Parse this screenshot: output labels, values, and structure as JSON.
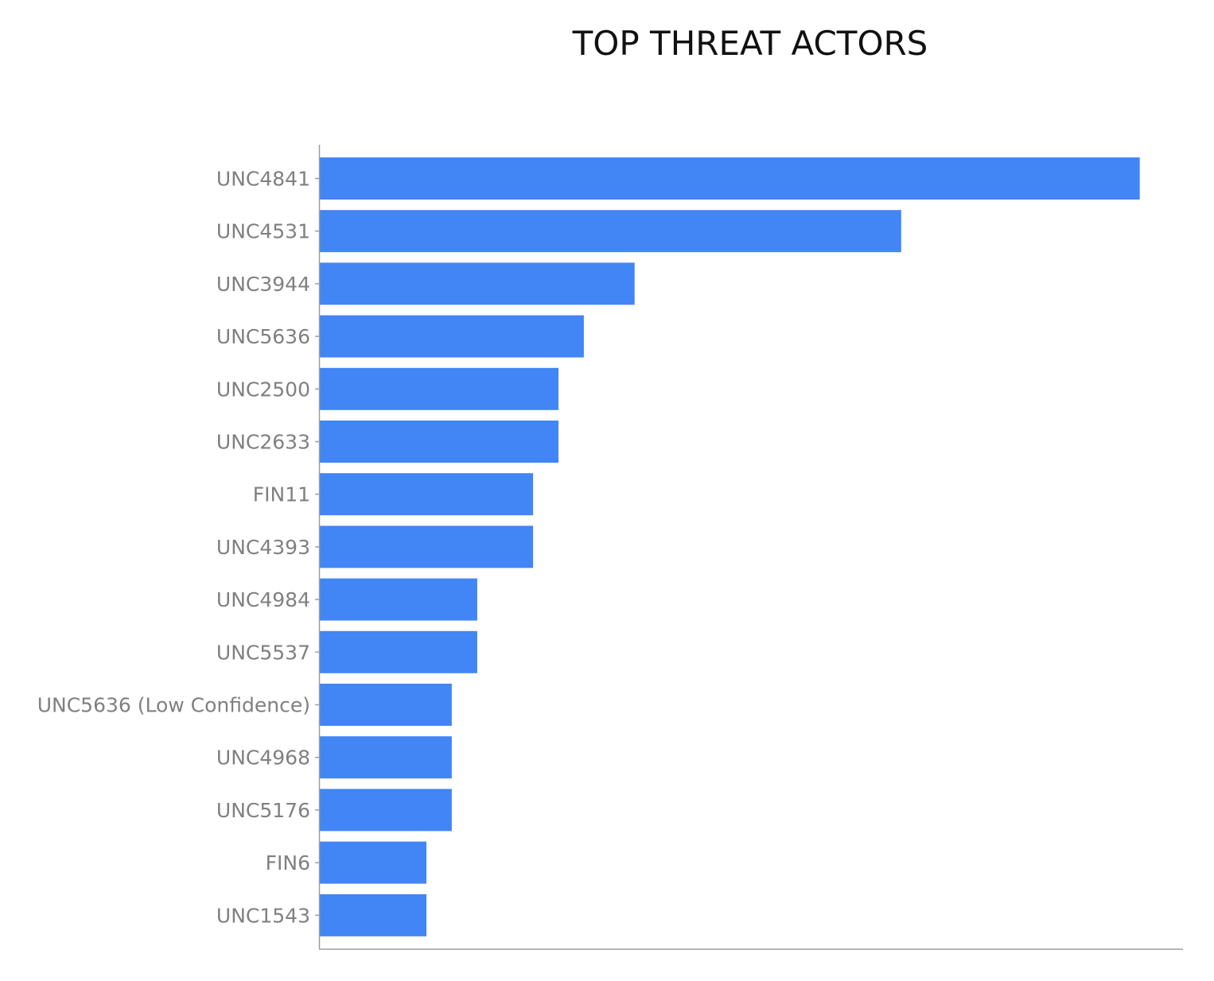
{
  "chart_data": {
    "type": "bar",
    "orientation": "horizontal",
    "title": "TOP THREAT ACTORS",
    "xlabel": "",
    "ylabel": "",
    "categories": [
      "UNC4841",
      "UNC4531",
      "UNC3944",
      "UNC5636",
      "UNC2500",
      "UNC2633",
      "FIN11",
      "UNC4393",
      "UNC4984",
      "UNC5537",
      "UNC5636 (Low Confidence)",
      "UNC4968",
      "UNC5176",
      "FIN6",
      "UNC1543"
    ],
    "values": [
      32.3,
      22.9,
      12.4,
      10.4,
      9.4,
      9.4,
      8.4,
      8.4,
      6.2,
      6.2,
      5.2,
      5.2,
      5.2,
      4.2,
      4.2
    ],
    "xlim": [
      0,
      34
    ],
    "grid": false,
    "legend": "none",
    "bar_color": "#4285F4"
  }
}
